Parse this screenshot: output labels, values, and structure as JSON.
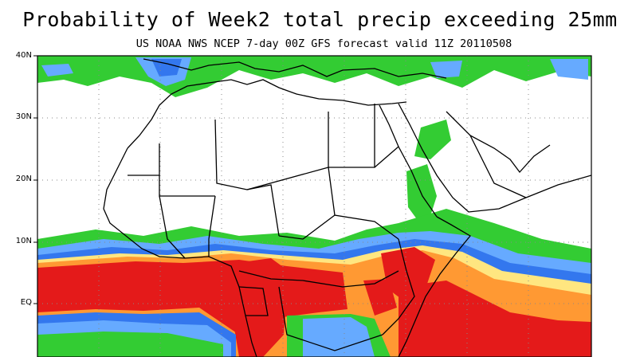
{
  "title": "Probability of Week2 total precip exceeding 25mm",
  "subtitle": "US NOAA NWS NCEP 7-day 00Z GFS forecast valid 11Z 20110508",
  "latitude_labels": [
    "40N",
    "30N",
    "20N",
    "10N",
    "EQ"
  ],
  "colors": {
    "green": "#33cc33",
    "light_green": "#8ce68c",
    "light_blue": "#66aaff",
    "blue": "#3377ee",
    "yellow": "#ffe680",
    "orange": "#ff9933",
    "red": "#e41a1a",
    "dark_red": "#cc1111",
    "border": "#000000",
    "grid": "#888888"
  }
}
